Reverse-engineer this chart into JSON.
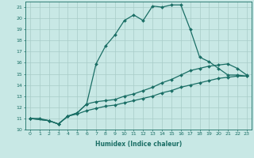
{
  "xlabel": "Humidex (Indice chaleur)",
  "xlim": [
    -0.5,
    23.5
  ],
  "ylim": [
    10,
    21.5
  ],
  "yticks": [
    10,
    11,
    12,
    13,
    14,
    15,
    16,
    17,
    18,
    19,
    20,
    21
  ],
  "xticks": [
    0,
    1,
    2,
    3,
    4,
    5,
    6,
    7,
    8,
    9,
    10,
    11,
    12,
    13,
    14,
    15,
    16,
    17,
    18,
    19,
    20,
    21,
    22,
    23
  ],
  "bg_color": "#c8e8e5",
  "line_color": "#1a6e65",
  "grid_color": "#a8ccc8",
  "line1_x": [
    0,
    1,
    2,
    3,
    4,
    5,
    6,
    7,
    8,
    9,
    10,
    11,
    12,
    13,
    14,
    15,
    16,
    17,
    18,
    19,
    20,
    21,
    22,
    23
  ],
  "line1_y": [
    11.0,
    11.0,
    10.8,
    10.5,
    11.2,
    11.5,
    12.3,
    15.9,
    17.5,
    18.5,
    19.8,
    20.3,
    19.8,
    21.1,
    21.0,
    21.2,
    21.2,
    19.0,
    16.5,
    16.1,
    15.5,
    14.9,
    14.9,
    14.8
  ],
  "line2_x": [
    0,
    2,
    3,
    4,
    5,
    6,
    7,
    8,
    9,
    10,
    11,
    12,
    13,
    14,
    15,
    16,
    17,
    18,
    19,
    20,
    21,
    22,
    23
  ],
  "line2_y": [
    11.0,
    10.8,
    10.5,
    11.2,
    11.5,
    12.3,
    12.5,
    12.6,
    12.7,
    13.0,
    13.2,
    13.5,
    13.8,
    14.2,
    14.5,
    14.9,
    15.3,
    15.5,
    15.7,
    15.8,
    15.9,
    15.5,
    14.9
  ],
  "line3_x": [
    0,
    2,
    3,
    4,
    5,
    6,
    7,
    8,
    9,
    10,
    11,
    12,
    13,
    14,
    15,
    16,
    17,
    18,
    19,
    20,
    21,
    22,
    23
  ],
  "line3_y": [
    11.0,
    10.8,
    10.5,
    11.2,
    11.4,
    11.7,
    11.9,
    12.1,
    12.2,
    12.4,
    12.6,
    12.8,
    13.0,
    13.3,
    13.5,
    13.8,
    14.0,
    14.2,
    14.4,
    14.6,
    14.7,
    14.8,
    14.8
  ],
  "marker": "D",
  "markersize": 2.0,
  "linewidth": 0.9
}
